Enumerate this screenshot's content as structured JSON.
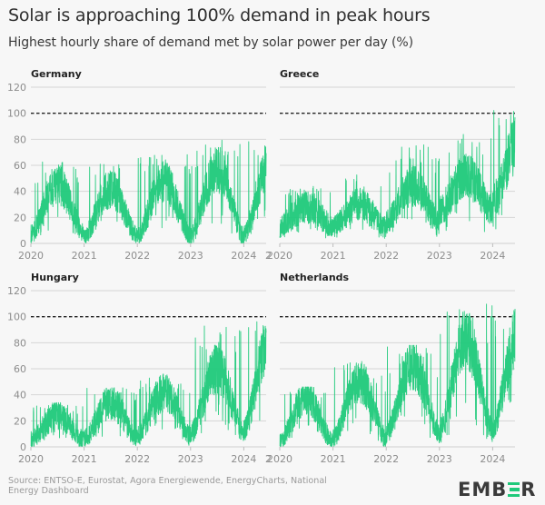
{
  "title": "Solar is approaching 100% demand in peak hours",
  "subtitle": "Highest hourly share of demand met by solar power per day (%)",
  "source": "Source: ENTSO-E, Eurostat, Agora Energiewende, EnergyCharts, National Energy Dashboard",
  "logo": {
    "text_left": "EMB",
    "text_right": "R"
  },
  "colors": {
    "series": "#1fc97a",
    "grid": "#d6d6d6",
    "reference": "#222222",
    "axis_text": "#8c8c8c"
  },
  "chart_data": [
    {
      "type": "line",
      "title": "Germany",
      "xlabel": "",
      "ylabel": "%",
      "ylim": [
        0,
        120
      ],
      "yticks": [
        "0",
        "20",
        "40",
        "60",
        "80",
        "100",
        "120"
      ],
      "xticks": [
        "2020",
        "2021",
        "2022",
        "2023",
        "2024"
      ],
      "xrange": [
        2020.0,
        2024.42
      ],
      "reference_line": 100,
      "grid": true,
      "seasonal_profile": {
        "low": [
          7,
          5,
          5,
          5,
          6
        ],
        "high": [
          45,
          42,
          48,
          57,
          62
        ],
        "max_peak": [
          64,
          61,
          69,
          80,
          80
        ]
      }
    },
    {
      "type": "line",
      "title": "Greece",
      "xlabel": "",
      "ylabel": "%",
      "ylim": [
        0,
        120
      ],
      "yticks": [
        "0",
        "20",
        "40",
        "60",
        "80",
        "100",
        "120"
      ],
      "xticks": [
        "2020",
        "2021",
        "2022",
        "2023",
        "2024"
      ],
      "xrange": [
        2020.0,
        2024.42
      ],
      "reference_line": 100,
      "grid": true,
      "seasonal_profile": {
        "low": [
          13,
          12,
          16,
          25,
          32
        ],
        "high": [
          28,
          30,
          44,
          52,
          78
        ],
        "max_peak": [
          44,
          53,
          76,
          84,
          112
        ]
      }
    },
    {
      "type": "line",
      "title": "Hungary",
      "xlabel": "",
      "ylabel": "%",
      "ylim": [
        0,
        120
      ],
      "yticks": [
        "0",
        "20",
        "40",
        "60",
        "80",
        "100",
        "120"
      ],
      "xticks": [
        "2020",
        "2021",
        "2022",
        "2023",
        "2024"
      ],
      "xrange": [
        2020.0,
        2024.42
      ],
      "reference_line": 100,
      "grid": true,
      "seasonal_profile": {
        "low": [
          5,
          6,
          8,
          10,
          12
        ],
        "high": [
          24,
          34,
          42,
          60,
          82
        ],
        "max_peak": [
          33,
          48,
          55,
          93,
          97
        ]
      }
    },
    {
      "type": "line",
      "title": "Netherlands",
      "xlabel": "",
      "ylabel": "%",
      "ylim": [
        0,
        120
      ],
      "yticks": [
        "0",
        "20",
        "40",
        "60",
        "80",
        "100",
        "120"
      ],
      "xticks": [
        "2020",
        "2021",
        "2022",
        "2023",
        "2024"
      ],
      "xrange": [
        2020.0,
        2024.42
      ],
      "reference_line": 100,
      "grid": true,
      "seasonal_profile": {
        "low": [
          3,
          6,
          10,
          12,
          14
        ],
        "high": [
          38,
          50,
          62,
          82,
          88
        ],
        "max_peak": [
          45,
          65,
          77,
          110,
          105
        ]
      }
    }
  ]
}
